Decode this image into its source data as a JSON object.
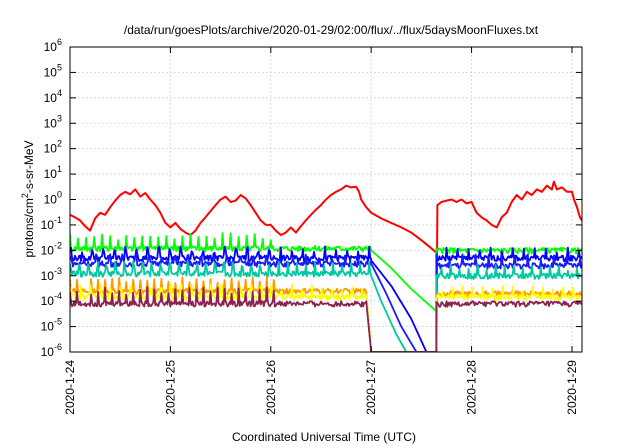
{
  "chart_data": {
    "type": "line",
    "title": "/data/run/goesPlots/archive/2020-01-29/02:00/flux/../flux/5daysMoonFluxes.txt",
    "xlabel": "Coordinated Universal Time (UTC)",
    "ylabel": "protons/cm²-s-sr-MeV",
    "ylabel_parts": {
      "pre": "protons/cm",
      "sup": "2",
      "post": "-s-sr-MeV"
    },
    "yscale": "log",
    "ylim_exp": [
      -6,
      6
    ],
    "ytick_exponents": [
      -6,
      -5,
      -4,
      -3,
      -2,
      -1,
      0,
      1,
      2,
      3,
      4,
      5,
      6
    ],
    "ytick_base": "10",
    "xlim_days": [
      0,
      5.1
    ],
    "xticks": [
      {
        "day": 0,
        "label": "2020-1-24"
      },
      {
        "day": 1,
        "label": "2020-1-25"
      },
      {
        "day": 2,
        "label": "2020-1-26"
      },
      {
        "day": 3,
        "label": "2020-1-27"
      },
      {
        "day": 4,
        "label": "2020-1-28"
      },
      {
        "day": 5,
        "label": "2020-1-29"
      }
    ],
    "grid": true,
    "series": [
      {
        "color": "#ff0000",
        "points": [
          [
            0.0,
            0.25
          ],
          [
            0.05,
            0.2
          ],
          [
            0.1,
            0.15
          ],
          [
            0.15,
            0.09
          ],
          [
            0.2,
            0.06
          ],
          [
            0.25,
            0.18
          ],
          [
            0.3,
            0.3
          ],
          [
            0.35,
            0.25
          ],
          [
            0.4,
            0.5
          ],
          [
            0.45,
            0.9
          ],
          [
            0.5,
            1.5
          ],
          [
            0.55,
            2.0
          ],
          [
            0.6,
            1.6
          ],
          [
            0.65,
            2.5
          ],
          [
            0.7,
            1.3
          ],
          [
            0.75,
            1.8
          ],
          [
            0.8,
            1.0
          ],
          [
            0.85,
            0.6
          ],
          [
            0.9,
            0.3
          ],
          [
            0.95,
            0.12
          ],
          [
            1.0,
            0.08
          ],
          [
            1.05,
            0.12
          ],
          [
            1.1,
            0.07
          ],
          [
            1.15,
            0.05
          ],
          [
            1.2,
            0.04
          ],
          [
            1.25,
            0.06
          ],
          [
            1.3,
            0.12
          ],
          [
            1.35,
            0.2
          ],
          [
            1.4,
            0.35
          ],
          [
            1.45,
            0.6
          ],
          [
            1.5,
            1.0
          ],
          [
            1.55,
            1.3
          ],
          [
            1.6,
            0.8
          ],
          [
            1.65,
            0.9
          ],
          [
            1.7,
            1.5
          ],
          [
            1.75,
            1.1
          ],
          [
            1.8,
            0.6
          ],
          [
            1.85,
            0.3
          ],
          [
            1.9,
            0.15
          ],
          [
            1.95,
            0.1
          ],
          [
            2.0,
            0.1
          ],
          [
            2.05,
            0.06
          ],
          [
            2.1,
            0.04
          ],
          [
            2.15,
            0.05
          ],
          [
            2.2,
            0.08
          ],
          [
            2.25,
            0.05
          ],
          [
            2.3,
            0.09
          ],
          [
            2.35,
            0.15
          ],
          [
            2.4,
            0.25
          ],
          [
            2.45,
            0.4
          ],
          [
            2.5,
            0.6
          ],
          [
            2.55,
            1.0
          ],
          [
            2.6,
            1.5
          ],
          [
            2.65,
            2.0
          ],
          [
            2.7,
            2.5
          ],
          [
            2.75,
            3.5
          ],
          [
            2.8,
            3.0
          ],
          [
            2.85,
            3.2
          ],
          [
            2.88,
            2.0
          ],
          [
            2.9,
            1.0
          ],
          [
            2.95,
            0.5
          ],
          [
            3.0,
            0.3
          ],
          [
            3.1,
            0.18
          ],
          [
            3.2,
            0.12
          ],
          [
            3.3,
            0.08
          ],
          [
            3.4,
            0.05
          ],
          [
            3.5,
            0.025
          ],
          [
            3.6,
            0.012
          ],
          [
            3.65,
            0.008
          ],
          [
            3.65,
            1e-06
          ],
          [
            3.66,
            0.6
          ],
          [
            3.7,
            0.8
          ],
          [
            3.75,
            0.9
          ],
          [
            3.8,
            1.0
          ],
          [
            3.85,
            0.8
          ],
          [
            3.9,
            1.0
          ],
          [
            3.95,
            0.7
          ],
          [
            4.0,
            0.8
          ],
          [
            4.05,
            0.3
          ],
          [
            4.1,
            0.2
          ],
          [
            4.15,
            0.15
          ],
          [
            4.2,
            0.1
          ],
          [
            4.25,
            0.08
          ],
          [
            4.3,
            0.2
          ],
          [
            4.35,
            0.3
          ],
          [
            4.4,
            0.8
          ],
          [
            4.45,
            1.5
          ],
          [
            4.5,
            1.0
          ],
          [
            4.55,
            2.0
          ],
          [
            4.6,
            1.5
          ],
          [
            4.65,
            2.5
          ],
          [
            4.7,
            2.0
          ],
          [
            4.75,
            3.5
          ],
          [
            4.8,
            2.5
          ],
          [
            4.82,
            5.0
          ],
          [
            4.85,
            2.5
          ],
          [
            4.9,
            3.0
          ],
          [
            4.95,
            2.0
          ],
          [
            5.0,
            2.0
          ],
          [
            5.02,
            1.0
          ],
          [
            5.05,
            0.5
          ],
          [
            5.08,
            0.2
          ],
          [
            5.1,
            0.15
          ]
        ]
      },
      {
        "color": "#00ff00",
        "base": 0.012,
        "spike": 0.04,
        "spikeEvery": 0.08,
        "decay": [
          [
            3.0,
            0.01
          ],
          [
            3.2,
            0.002
          ],
          [
            3.4,
            0.0003
          ],
          [
            3.65,
            4e-05
          ]
        ],
        "after": [
          3.65,
          0.01
        ]
      },
      {
        "color": "#0000ff",
        "base": 0.005,
        "spike": 0.012,
        "spikeEvery": 0.11,
        "decay": [
          [
            3.0,
            0.004
          ],
          [
            3.2,
            0.0004
          ],
          [
            3.4,
            2e-05
          ],
          [
            3.55,
            1e-06
          ]
        ],
        "after": [
          3.65,
          0.005
        ]
      },
      {
        "color": "#1a1aff",
        "base": 0.003,
        "spike": 0.006,
        "spikeEvery": 0.13,
        "decay": [
          [
            3.0,
            0.003
          ],
          [
            3.15,
            0.0002
          ],
          [
            3.3,
            1e-05
          ],
          [
            3.45,
            1e-06
          ]
        ],
        "after": [
          3.65,
          0.0025
        ]
      },
      {
        "color": "#00c8a0",
        "base": 0.0012,
        "spike": 0.003,
        "spikeEvery": 0.09,
        "decay": [
          [
            3.0,
            0.001
          ],
          [
            3.1,
            0.0001
          ],
          [
            3.25,
            5e-06
          ],
          [
            3.35,
            1e-06
          ]
        ],
        "after": [
          3.65,
          0.001
        ]
      },
      {
        "color": "#ff9900",
        "base": 0.00025,
        "spike": 0.0008,
        "spikeEvery": 0.07,
        "decay": [
          [
            2.95,
            0.0002
          ],
          [
            3.0,
            1e-06
          ]
        ],
        "after": [
          3.65,
          0.0002
        ]
      },
      {
        "color": "#ffff00",
        "base": 0.00015,
        "spike": 0.0004,
        "spikeEvery": 0.1,
        "decay": [
          [
            2.95,
            0.00015
          ],
          [
            3.0,
            1e-06
          ]
        ],
        "after": [
          3.65,
          0.00015
        ]
      },
      {
        "color": "#8b2252",
        "base": 8e-05,
        "spike": 0.0003,
        "spikeEvery": 0.07,
        "decay": [
          [
            2.95,
            0.0001
          ],
          [
            3.0,
            1e-06
          ]
        ],
        "after": [
          3.65,
          8e-05
        ]
      }
    ]
  }
}
